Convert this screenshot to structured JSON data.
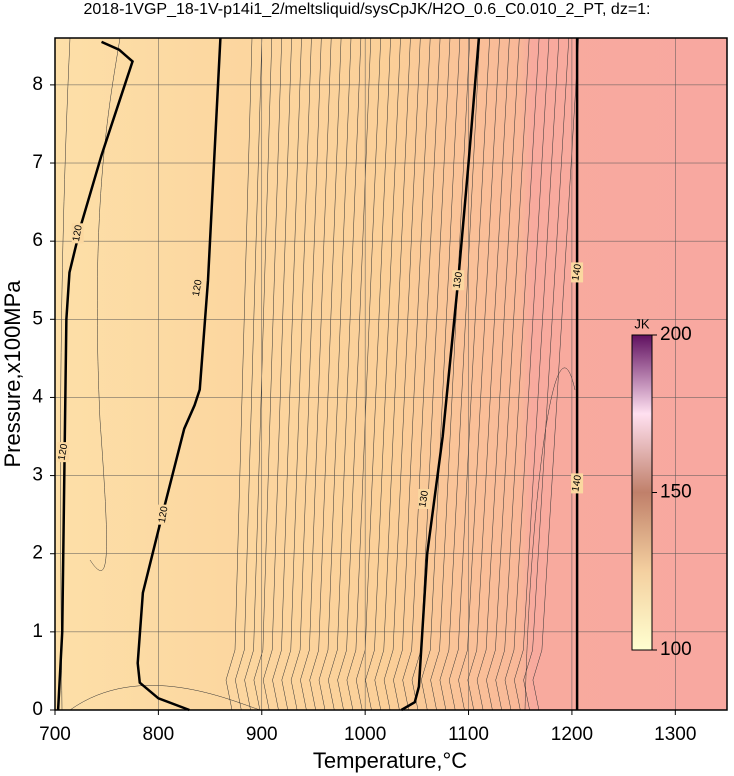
{
  "chart_data": {
    "type": "contour",
    "title": "2018-1VGP_18-1V-p14i1_2/meltsliquid/sysCpJK/H2O_0.6_C0.010_2_PT, dz=1:",
    "x_label": "Temperature,°C",
    "y_label": "Pressure,x100MPa",
    "xlim": [
      700,
      1350
    ],
    "ylim": [
      0,
      8.6
    ],
    "xticks": [
      700,
      800,
      900,
      1000,
      1100,
      1200,
      1300
    ],
    "yticks": [
      0,
      1,
      2,
      3,
      4,
      5,
      6,
      7,
      8
    ],
    "grid": true,
    "contours": [
      {
        "level": 120,
        "x": [
          703,
          707,
          709,
          711,
          714,
          725,
          745,
          765,
          775,
          762,
          745
        ],
        "y": [
          0,
          1,
          3,
          5,
          5.6,
          6.2,
          7.1,
          7.9,
          8.3,
          8.45,
          8.55
        ],
        "label_at": [
          [
            708,
            3.3
          ],
          [
            722,
            6.1
          ]
        ]
      },
      {
        "level": 120,
        "x": [
          830,
          800,
          782,
          780,
          785,
          800,
          825,
          835,
          840,
          848,
          860
        ],
        "y": [
          0,
          0.15,
          0.35,
          0.6,
          1.5,
          2.3,
          3.6,
          3.9,
          4.1,
          5.5,
          8.6
        ],
        "label_at": [
          [
            805,
            2.5
          ],
          [
            838,
            5.4
          ]
        ]
      },
      {
        "level": 130,
        "x": [
          1035,
          1048,
          1052,
          1060,
          1075,
          1090,
          1100,
          1110
        ],
        "y": [
          0,
          0.1,
          0.3,
          2,
          3.5,
          5.5,
          7,
          8.6
        ],
        "label_at": [
          [
            1057,
            2.7
          ],
          [
            1090,
            5.5
          ]
        ]
      },
      {
        "level": 140,
        "x": [
          1205,
          1205
        ],
        "y": [
          0,
          8.6
        ],
        "label_at": [
          [
            1205,
            2.9
          ],
          [
            1205,
            5.6
          ]
        ]
      }
    ],
    "colorbar": {
      "title": "JK",
      "lim": [
        100,
        200
      ],
      "ticks": [
        100,
        150,
        200
      ],
      "colors": [
        "#ffffd0",
        "#f4d0a0",
        "#c0806a",
        "#ffe0f0",
        "#601060"
      ]
    }
  }
}
